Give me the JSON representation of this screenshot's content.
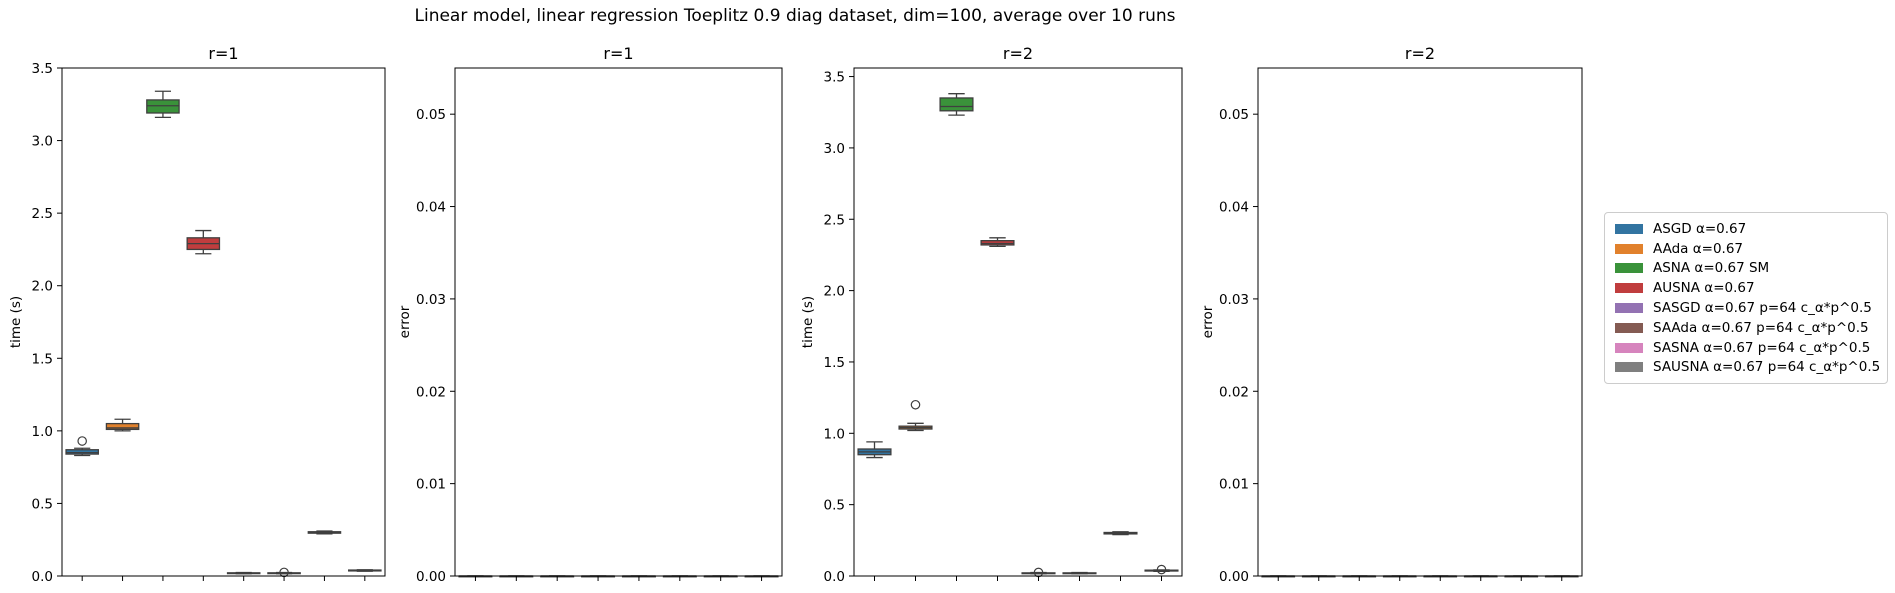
{
  "suptitle": "Linear model, linear regression Toeplitz 0.9 diag dataset, dim=100, average over 10 runs",
  "legend": [
    {
      "label": "ASGD α=0.67",
      "color": "#3274a1"
    },
    {
      "label": "AAda α=0.67",
      "color": "#e1812c"
    },
    {
      "label": "ASNA α=0.67 SM",
      "color": "#3a923a"
    },
    {
      "label": "AUSNA α=0.67",
      "color": "#c03d3e"
    },
    {
      "label": "SASGD α=0.67 p=64 c_α*p^0.5",
      "color": "#9372b2"
    },
    {
      "label": "SAAda α=0.67 p=64 c_α*p^0.5",
      "color": "#845b53"
    },
    {
      "label": "SASNA α=0.67 p=64 c_α*p^0.5",
      "color": "#d684bd"
    },
    {
      "label": "SAUSNA α=0.67 p=64 c_α*p^0.5",
      "color": "#7f7f7f"
    }
  ],
  "chart_data": [
    {
      "type": "box",
      "title": "r=1",
      "ylabel": "time (s)",
      "ylim": [
        0,
        3.5
      ],
      "yticks": [
        "0.0",
        "0.5",
        "1.0",
        "1.5",
        "2.0",
        "2.5",
        "3.0",
        "3.5"
      ],
      "boxes": [
        {
          "q1": 0.84,
          "median": 0.85,
          "q3": 0.87,
          "wlow": 0.83,
          "whigh": 0.88,
          "outliers": [
            0.93
          ]
        },
        {
          "q1": 1.01,
          "median": 1.02,
          "q3": 1.05,
          "wlow": 1.0,
          "whigh": 1.08,
          "outliers": []
        },
        {
          "q1": 3.19,
          "median": 3.24,
          "q3": 3.28,
          "wlow": 3.16,
          "whigh": 3.34,
          "outliers": []
        },
        {
          "q1": 2.25,
          "median": 2.29,
          "q3": 2.33,
          "wlow": 2.22,
          "whigh": 2.38,
          "outliers": []
        },
        {
          "q1": 0.018,
          "median": 0.02,
          "q3": 0.022,
          "wlow": 0.016,
          "whigh": 0.024,
          "outliers": []
        },
        {
          "q1": 0.018,
          "median": 0.02,
          "q3": 0.022,
          "wlow": 0.016,
          "whigh": 0.024,
          "outliers": [
            0.025
          ]
        },
        {
          "q1": 0.295,
          "median": 0.3,
          "q3": 0.305,
          "wlow": 0.29,
          "whigh": 0.31,
          "outliers": []
        },
        {
          "q1": 0.035,
          "median": 0.038,
          "q3": 0.041,
          "wlow": 0.033,
          "whigh": 0.043,
          "outliers": []
        }
      ]
    },
    {
      "type": "box",
      "title": "r=1",
      "ylabel": "error",
      "ylim": [
        0,
        0.055
      ],
      "yticks": [
        "0.00",
        "0.01",
        "0.02",
        "0.03",
        "0.04",
        "0.05"
      ],
      "boxes": [
        {
          "q1": 0,
          "median": 0,
          "q3": 0,
          "wlow": 0,
          "whigh": 0,
          "outliers": []
        },
        {
          "q1": 0,
          "median": 0,
          "q3": 0,
          "wlow": 0,
          "whigh": 0,
          "outliers": []
        },
        {
          "q1": 0,
          "median": 0,
          "q3": 0,
          "wlow": 0,
          "whigh": 0,
          "outliers": []
        },
        {
          "q1": 0,
          "median": 0,
          "q3": 0,
          "wlow": 0,
          "whigh": 0,
          "outliers": []
        },
        {
          "q1": 0,
          "median": 0,
          "q3": 0,
          "wlow": 0,
          "whigh": 0,
          "outliers": []
        },
        {
          "q1": 0,
          "median": 0,
          "q3": 0,
          "wlow": 0,
          "whigh": 0,
          "outliers": []
        },
        {
          "q1": 0,
          "median": 0,
          "q3": 0,
          "wlow": 0,
          "whigh": 0,
          "outliers": []
        },
        {
          "q1": 0,
          "median": 0,
          "q3": 0,
          "wlow": 0,
          "whigh": 0,
          "outliers": []
        }
      ]
    },
    {
      "type": "box",
      "title": "r=2",
      "ylabel": "time (s)",
      "ylim": [
        0,
        3.56
      ],
      "yticks": [
        "0.0",
        "0.5",
        "1.0",
        "1.5",
        "2.0",
        "2.5",
        "3.0",
        "3.5"
      ],
      "boxes": [
        {
          "q1": 0.85,
          "median": 0.87,
          "q3": 0.89,
          "wlow": 0.83,
          "whigh": 0.94,
          "outliers": []
        },
        {
          "q1": 1.03,
          "median": 1.04,
          "q3": 1.05,
          "wlow": 1.02,
          "whigh": 1.07,
          "outliers": [
            1.2
          ]
        },
        {
          "q1": 3.26,
          "median": 3.29,
          "q3": 3.35,
          "wlow": 3.23,
          "whigh": 3.38,
          "outliers": []
        },
        {
          "q1": 2.32,
          "median": 2.33,
          "q3": 2.35,
          "wlow": 2.31,
          "whigh": 2.37,
          "outliers": []
        },
        {
          "q1": 0.018,
          "median": 0.02,
          "q3": 0.022,
          "wlow": 0.016,
          "whigh": 0.024,
          "outliers": [
            0.025
          ]
        },
        {
          "q1": 0.018,
          "median": 0.02,
          "q3": 0.022,
          "wlow": 0.016,
          "whigh": 0.024,
          "outliers": []
        },
        {
          "q1": 0.295,
          "median": 0.3,
          "q3": 0.305,
          "wlow": 0.29,
          "whigh": 0.31,
          "outliers": []
        },
        {
          "q1": 0.035,
          "median": 0.038,
          "q3": 0.041,
          "wlow": 0.033,
          "whigh": 0.043,
          "outliers": [
            0.045
          ]
        }
      ]
    },
    {
      "type": "box",
      "title": "r=2",
      "ylabel": "error",
      "ylim": [
        0,
        0.055
      ],
      "yticks": [
        "0.00",
        "0.01",
        "0.02",
        "0.03",
        "0.04",
        "0.05"
      ],
      "boxes": [
        {
          "q1": 0,
          "median": 0,
          "q3": 0,
          "wlow": 0,
          "whigh": 0,
          "outliers": []
        },
        {
          "q1": 0,
          "median": 0,
          "q3": 0,
          "wlow": 0,
          "whigh": 0,
          "outliers": []
        },
        {
          "q1": 0,
          "median": 0,
          "q3": 0,
          "wlow": 0,
          "whigh": 0,
          "outliers": []
        },
        {
          "q1": 0,
          "median": 0,
          "q3": 0,
          "wlow": 0,
          "whigh": 0,
          "outliers": []
        },
        {
          "q1": 0,
          "median": 0,
          "q3": 0,
          "wlow": 0,
          "whigh": 0,
          "outliers": []
        },
        {
          "q1": 0,
          "median": 0,
          "q3": 0,
          "wlow": 0,
          "whigh": 0,
          "outliers": []
        },
        {
          "q1": 0,
          "median": 0,
          "q3": 0,
          "wlow": 0,
          "whigh": 0,
          "outliers": []
        },
        {
          "q1": 0,
          "median": 0,
          "q3": 0,
          "wlow": 0,
          "whigh": 0,
          "outliers": []
        }
      ]
    }
  ]
}
